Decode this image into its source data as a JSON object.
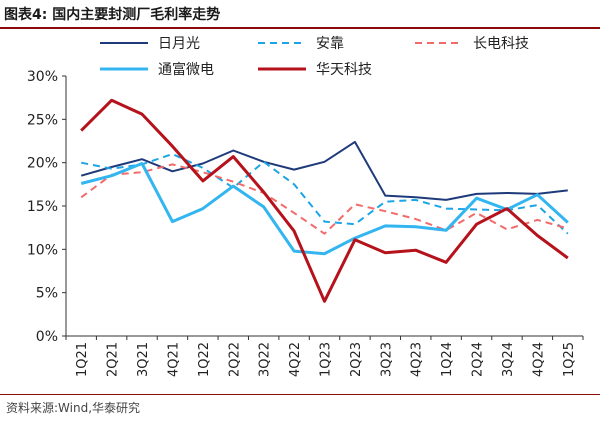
{
  "figure": {
    "title": "图表4:  国内主要封测厂毛利率走势",
    "source": "资料来源:Wind,华泰研究"
  },
  "chart_data": {
    "type": "line",
    "title": "国内主要封测厂毛利率走势",
    "xlabel": "",
    "ylabel": "",
    "ylim": [
      0,
      30
    ],
    "yticks": [
      "0%",
      "5%",
      "10%",
      "15%",
      "20%",
      "25%",
      "30%"
    ],
    "ytick_values": [
      0,
      5,
      10,
      15,
      20,
      25,
      30
    ],
    "grid": false,
    "legend_position": "top",
    "categories": [
      "1Q21",
      "2Q21",
      "3Q21",
      "4Q21",
      "1Q22",
      "2Q22",
      "3Q22",
      "4Q22",
      "1Q23",
      "2Q23",
      "3Q23",
      "4Q23",
      "1Q24",
      "2Q24",
      "3Q24",
      "4Q24",
      "1Q25"
    ],
    "series": [
      {
        "name": "日月光",
        "color": "#1f3a7a",
        "dash": "solid",
        "width": 2,
        "values": [
          18.5,
          19.5,
          20.4,
          19.0,
          19.9,
          21.4,
          20.1,
          19.2,
          20.1,
          22.4,
          16.2,
          16.0,
          15.7,
          16.4,
          16.5,
          16.4,
          16.8
        ]
      },
      {
        "name": "安靠",
        "color": "#1ca5e6",
        "dash": "dashed",
        "width": 2,
        "values": [
          20.0,
          19.3,
          19.8,
          21.0,
          19.4,
          17.1,
          20.1,
          17.5,
          13.2,
          12.9,
          15.5,
          15.7,
          14.7,
          14.6,
          14.5,
          15.1,
          11.8
        ]
      },
      {
        "name": "长电科技",
        "color": "#f26b6b",
        "dash": "dashed",
        "width": 2,
        "values": [
          16.0,
          18.6,
          18.9,
          19.8,
          18.9,
          17.8,
          16.5,
          14.2,
          11.8,
          15.2,
          14.4,
          13.5,
          12.2,
          14.2,
          12.3,
          13.4,
          12.4
        ]
      },
      {
        "name": "通富微电",
        "color": "#33b5f0",
        "dash": "solid",
        "width": 3,
        "values": [
          17.6,
          18.5,
          19.9,
          13.2,
          14.7,
          17.3,
          14.9,
          9.8,
          9.5,
          11.3,
          12.7,
          12.6,
          12.2,
          15.9,
          14.6,
          16.3,
          13.1
        ]
      },
      {
        "name": "华天科技",
        "color": "#b5121b",
        "dash": "solid",
        "width": 3,
        "values": [
          23.7,
          27.2,
          25.6,
          21.9,
          17.9,
          20.7,
          16.6,
          12.1,
          4.0,
          11.1,
          9.6,
          9.9,
          8.5,
          12.9,
          14.7,
          11.6,
          9.0
        ]
      }
    ]
  }
}
